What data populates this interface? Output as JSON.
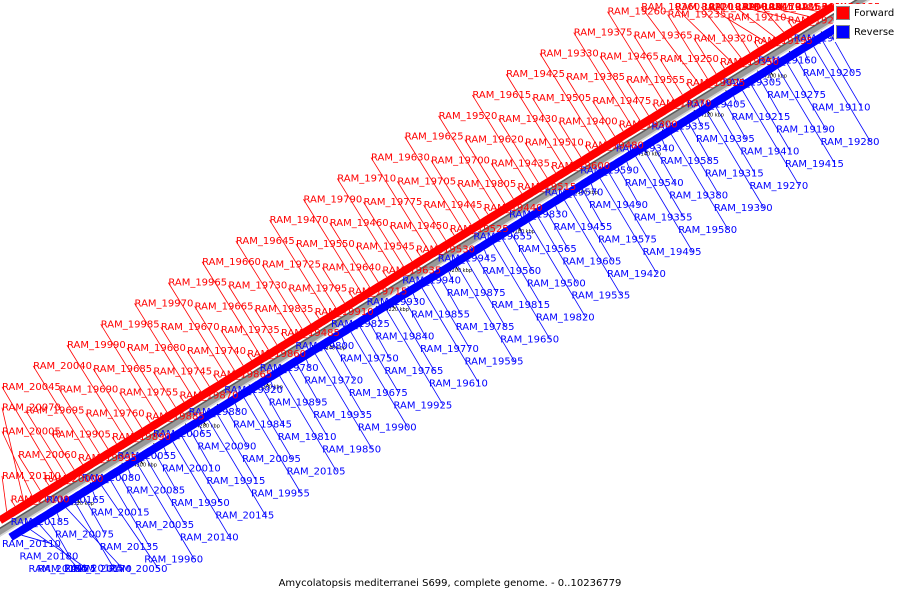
{
  "genome": {
    "caption": "Amycolatopsis mediterranei S699, complete genome. - 0..10236779",
    "start_bp": 4062500,
    "end_bp": 4345000
  },
  "legend": {
    "forward_label": "Forward",
    "reverse_label": "Reverse"
  },
  "colors": {
    "forward": "#ff0000",
    "reverse": "#0000ff",
    "backbone": "#999999",
    "scale_mark": "#000000"
  },
  "scale_labels": [
    {
      "pos": 4080000,
      "label": "4080 kbp"
    },
    {
      "pos": 4100000,
      "label": "4100 kbp"
    },
    {
      "pos": 4120000,
      "label": "4120 kbp"
    },
    {
      "pos": 4140000,
      "label": "4140 kbp"
    },
    {
      "pos": 4160000,
      "label": "4160 kbp"
    },
    {
      "pos": 4180000,
      "label": "4180 kbp"
    },
    {
      "pos": 4200000,
      "label": "4200 kbp"
    },
    {
      "pos": 4220000,
      "label": "4220 kbp"
    },
    {
      "pos": 4240000,
      "label": "4240 kbp"
    },
    {
      "pos": 4260000,
      "label": "4260 kbp"
    },
    {
      "pos": 4280000,
      "label": "4280 kbp"
    },
    {
      "pos": 4300000,
      "label": "4300 kbp"
    },
    {
      "pos": 4320000,
      "label": "4320 kbp"
    }
  ],
  "reverse_labels": [
    "RAM_19285",
    "RAM_19205",
    "RAM_19110",
    "RAM_19280",
    "RAM_19160",
    "RAM_19275",
    "RAM_19190",
    "RAM_19415",
    "RAM_19305",
    "RAM_19215",
    "RAM_19410",
    "RAM_19270",
    "RAM_19405",
    "RAM_19395",
    "RAM_19315",
    "RAM_19390",
    "RAM_19335",
    "RAM_19585",
    "RAM_19380",
    "RAM_19580",
    "RAM_19340",
    "RAM_19540",
    "RAM_19355",
    "RAM_19495",
    "RAM_19590",
    "RAM_19490",
    "RAM_19575",
    "RAM_19420",
    "RAM_19570",
    "RAM_19455",
    "RAM_19605",
    "RAM_19535",
    "RAM_19830",
    "RAM_19565",
    "RAM_19500",
    "RAM_19820",
    "RAM_19655",
    "RAM_19560",
    "RAM_19815",
    "RAM_19650",
    "RAM_19945",
    "RAM_19875",
    "RAM_19785",
    "RAM_19595",
    "RAM_19940",
    "RAM_19855",
    "RAM_19770",
    "RAM_19610",
    "RAM_19930",
    "RAM_19840",
    "RAM_19765",
    "RAM_19925",
    "RAM_19825",
    "RAM_19750",
    "RAM_19675",
    "RAM_19900",
    "RAM_19800",
    "RAM_19720",
    "RAM_19935",
    "RAM_19850",
    "RAM_19780",
    "RAM_19895",
    "RAM_19810",
    "RAM_20105",
    "RAM_19920",
    "RAM_19845",
    "RAM_20095",
    "RAM_19955",
    "RAM_19880",
    "RAM_20090",
    "RAM_19915",
    "RAM_20145",
    "RAM_20065",
    "RAM_20010",
    "RAM_19950",
    "RAM_20140",
    "RAM_20055",
    "RAM_20085",
    "RAM_20035",
    "RAM_19960",
    "RAM_20080",
    "RAM_20015",
    "RAM_20135",
    "RAM_20050",
    "RAM_20165",
    "RAM_20075",
    "RAM_20125",
    "RAM_20170",
    "RAM_20185",
    "RAM_20180",
    "RAM_20150",
    "RAM_20175",
    "RAM_20110"
  ],
  "forward_labels": [
    "RAM_19125",
    "RAM_19145",
    "RAM_19165",
    "RAM_19170",
    "RAM_19265",
    "RAM_19185",
    "RAM_19345",
    "RAM_19290",
    "RAM_19195",
    "RAM_19210",
    "RAM_19310",
    "RAM_19220",
    "RAM_19350",
    "RAM_19320",
    "RAM_19235",
    "RAM_19360",
    "RAM_19325",
    "RAM_19250",
    "RAM_19365",
    "RAM_19260",
    "RAM_19370",
    "RAM_19555",
    "RAM_19465",
    "RAM_19375",
    "RAM_19300",
    "RAM_19475",
    "RAM_19385",
    "RAM_19330",
    "RAM_19480",
    "RAM_19400",
    "RAM_19505",
    "RAM_19425",
    "RAM_19600",
    "RAM_19510",
    "RAM_19430",
    "RAM_19615",
    "RAM_19515",
    "RAM_19435",
    "RAM_19620",
    "RAM_19520",
    "RAM_19440",
    "RAM_19805",
    "RAM_19700",
    "RAM_19625",
    "RAM_19525",
    "RAM_19445",
    "RAM_19705",
    "RAM_19630",
    "RAM_19530",
    "RAM_19450",
    "RAM_19775",
    "RAM_19710",
    "RAM_19635",
    "RAM_19545",
    "RAM_19460",
    "RAM_19790",
    "RAM_19715",
    "RAM_19640",
    "RAM_19550",
    "RAM_19470",
    "RAM_19910",
    "RAM_19795",
    "RAM_19725",
    "RAM_19645",
    "RAM_19485",
    "RAM_19835",
    "RAM_19730",
    "RAM_19660",
    "RAM_19860",
    "RAM_19735",
    "RAM_19665",
    "RAM_19965",
    "RAM_19865",
    "RAM_19740",
    "RAM_19670",
    "RAM_19970",
    "RAM_19870",
    "RAM_19745",
    "RAM_19680",
    "RAM_19985",
    "RAM_19885",
    "RAM_19755",
    "RAM_19685",
    "RAM_19990",
    "RAM_19890",
    "RAM_19760",
    "RAM_19690",
    "RAM_20040",
    "RAM_19995",
    "RAM_19905",
    "RAM_19695",
    "RAM_20045",
    "RAM_20000",
    "RAM_20060",
    "RAM_20005",
    "RAM_20070",
    "RAM_20100",
    "RAM_20110"
  ]
}
